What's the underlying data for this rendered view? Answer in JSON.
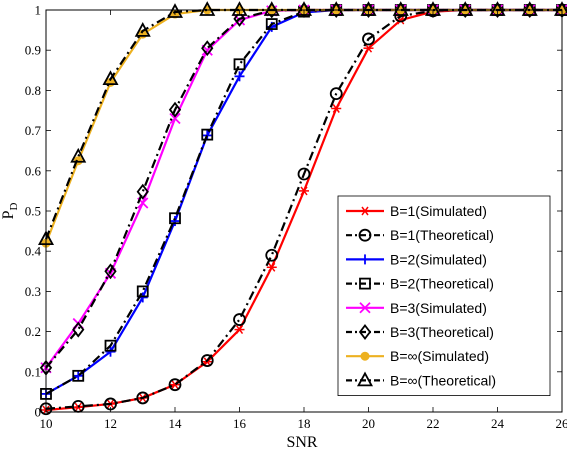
{
  "chart_data": {
    "type": "line",
    "xlabel": "SNR",
    "ylabel": "P",
    "ylabel_sub": "D",
    "xlim": [
      10,
      26
    ],
    "ylim": [
      0,
      1
    ],
    "x_ticks": [
      10,
      12,
      14,
      16,
      18,
      20,
      22,
      24,
      26
    ],
    "y_ticks": [
      0,
      0.1,
      0.2,
      0.3,
      0.4,
      0.5,
      0.6,
      0.7,
      0.8,
      0.9,
      1
    ],
    "y_tick_labels": [
      "0",
      "0.1",
      "0.2",
      "0.3",
      "0.4",
      "0.5",
      "0.6",
      "0.7",
      "0.8",
      "0.9",
      "1"
    ],
    "grid": false,
    "legend_position": "bottom-right",
    "x": [
      10,
      11,
      12,
      13,
      14,
      15,
      16,
      17,
      18,
      19,
      20,
      21,
      22,
      23,
      24,
      25,
      26
    ],
    "series": [
      {
        "name": "B=1(Simulated)",
        "color": "#ff0000",
        "dash": "solid",
        "marker": "asterisk",
        "values": [
          0.005,
          0.012,
          0.02,
          0.035,
          0.068,
          0.125,
          0.205,
          0.36,
          0.55,
          0.755,
          0.905,
          0.975,
          0.996,
          1,
          1,
          1,
          1
        ]
      },
      {
        "name": "B=1(Theoretical)",
        "color": "#000000",
        "dash": "dashdot",
        "marker": "circle",
        "values": [
          0.008,
          0.014,
          0.02,
          0.035,
          0.068,
          0.128,
          0.23,
          0.39,
          0.592,
          0.792,
          0.928,
          0.985,
          0.998,
          1,
          1,
          1,
          1
        ]
      },
      {
        "name": "B=2(Simulated)",
        "color": "#0000ff",
        "dash": "solid",
        "marker": "plus",
        "values": [
          0.045,
          0.09,
          0.15,
          0.285,
          0.475,
          0.688,
          0.835,
          0.958,
          0.994,
          1,
          1,
          1,
          1,
          1,
          1,
          1,
          1
        ]
      },
      {
        "name": "B=2(Theoretical)",
        "color": "#000000",
        "dash": "dashdot",
        "marker": "square",
        "values": [
          0.045,
          0.09,
          0.165,
          0.3,
          0.482,
          0.69,
          0.865,
          0.965,
          0.996,
          1,
          1,
          1,
          1,
          1,
          1,
          1,
          1
        ]
      },
      {
        "name": "B=3(Simulated)",
        "color": "#ff00ff",
        "dash": "solid",
        "marker": "cross",
        "values": [
          0.11,
          0.22,
          0.345,
          0.52,
          0.73,
          0.9,
          0.975,
          0.998,
          1,
          1,
          1,
          1,
          1,
          1,
          1,
          1,
          1
        ]
      },
      {
        "name": "B=3(Theoretical)",
        "color": "#000000",
        "dash": "dashdot",
        "marker": "diamond",
        "values": [
          0.11,
          0.205,
          0.35,
          0.548,
          0.752,
          0.905,
          0.978,
          0.999,
          1,
          1,
          1,
          1,
          1,
          1,
          1,
          1,
          1
        ]
      },
      {
        "name": "B=∞(Simulated)",
        "color": "#edb120",
        "dash": "solid",
        "marker": "dot",
        "values": [
          0.42,
          0.625,
          0.82,
          0.94,
          0.99,
          1,
          1,
          1,
          1,
          1,
          1,
          1,
          1,
          1,
          1,
          1,
          1
        ]
      },
      {
        "name": "B=∞(Theoretical)",
        "color": "#000000",
        "dash": "dashdot",
        "marker": "triangle",
        "values": [
          0.43,
          0.635,
          0.828,
          0.948,
          0.995,
          1,
          1,
          1,
          1,
          1,
          1,
          1,
          1,
          1,
          1,
          1,
          1
        ]
      }
    ]
  }
}
